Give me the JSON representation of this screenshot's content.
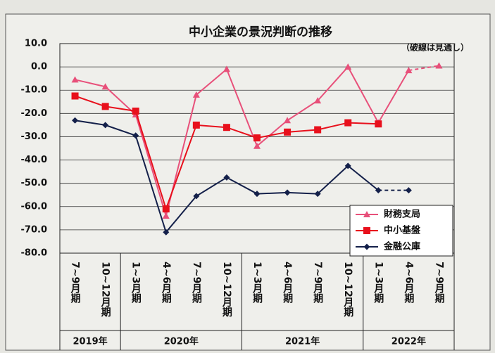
{
  "chart_data": {
    "type": "line",
    "title": "中小企業の景況判断の推移",
    "annotation": "（破線は見通し）",
    "categories": [
      "7~9月期",
      "10~12月期",
      "1~3月期",
      "4~6月期",
      "7~9月期",
      "10~12月期",
      "1~3月期",
      "4~6月期",
      "7~9月期",
      "10~12月期",
      "1~3月期",
      "4~6月期",
      "7~9月期"
    ],
    "years": [
      {
        "label": "2019年",
        "span": 2
      },
      {
        "label": "2020年",
        "span": 4
      },
      {
        "label": "2021年",
        "span": 4
      },
      {
        "label": "2022年",
        "span": 3
      }
    ],
    "series": [
      {
        "name": "財務支局",
        "color": "#e8507a",
        "marker": "triangle",
        "dashed_from": 11,
        "values": [
          -5.5,
          -8.5,
          -20.5,
          -64,
          -12,
          -1,
          -34,
          -23,
          -14.5,
          0,
          -24,
          -1.5,
          0.5
        ]
      },
      {
        "name": "中小基盤",
        "color": "#e8101c",
        "marker": "square",
        "values": [
          -12.5,
          -17,
          -19,
          -61,
          -25,
          -26,
          -30.5,
          -28,
          -27,
          -24,
          -24.5,
          null,
          null
        ]
      },
      {
        "name": "金融公庫",
        "color": "#14204a",
        "marker": "diamond",
        "dashed_from": 10,
        "values": [
          -23,
          -25,
          -29.5,
          -71,
          -55.5,
          -47.5,
          -54.5,
          -54,
          -54.5,
          -42.5,
          -53,
          -53,
          null
        ]
      }
    ],
    "ylim": [
      -80,
      10
    ],
    "yticks": [
      {
        "value": 10,
        "label": "10.0"
      },
      {
        "value": 0,
        "label": "0.0"
      },
      {
        "value": -10,
        "label": "-10.0"
      },
      {
        "value": -20,
        "label": "-20.0"
      },
      {
        "value": -30,
        "label": "-30.0"
      },
      {
        "value": -40,
        "label": "-40.0"
      },
      {
        "value": -50,
        "label": "-50.0"
      },
      {
        "value": -60,
        "label": "-60.0"
      },
      {
        "value": -70,
        "label": "-70.0"
      },
      {
        "value": -80,
        "label": "-80.0"
      }
    ],
    "grid": true
  }
}
